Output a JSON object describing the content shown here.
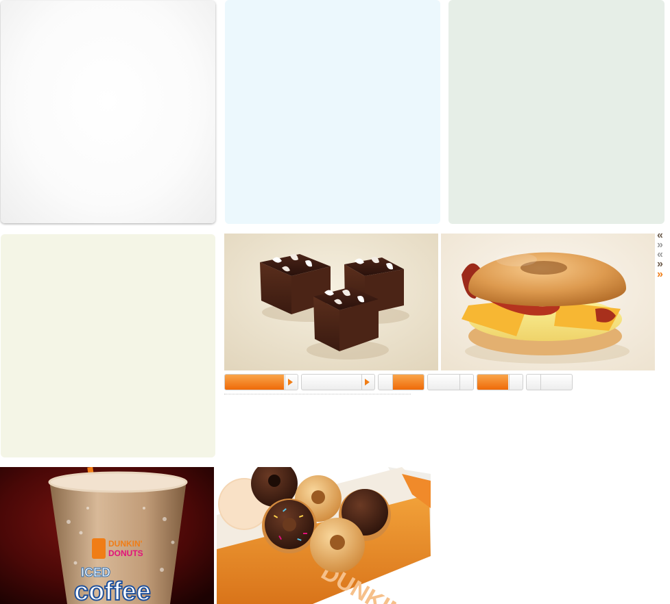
{
  "panels": [
    {
      "name": "white",
      "color": "#ffffff"
    },
    {
      "name": "blue",
      "color": "#ecf8fd"
    },
    {
      "name": "green",
      "color": "#e6eee7"
    },
    {
      "name": "cream",
      "color": "#f4f5e6"
    }
  ],
  "carousel": {
    "arrows": [
      {
        "glyph": "«",
        "icon": "double-chevron-left-icon",
        "color": "#6b5a4a"
      },
      {
        "glyph": "»",
        "icon": "double-chevron-right-icon",
        "color": "#9a9a9a"
      },
      {
        "glyph": "«",
        "icon": "double-chevron-left-icon",
        "color": "#9a9a9a"
      },
      {
        "glyph": "»",
        "icon": "double-chevron-right-icon",
        "color": "#6b5a4a"
      },
      {
        "glyph": "»",
        "icon": "double-chevron-right-icon",
        "color": "#f07d16"
      }
    ],
    "tabs": [
      {
        "state": "active",
        "progress": 0.8
      },
      {
        "state": "inactive",
        "progress": 0
      },
      {
        "state": "partial",
        "progress": 0.6
      },
      {
        "state": "inactive",
        "progress": 0
      },
      {
        "state": "partial",
        "progress": 0.65
      },
      {
        "state": "inactive",
        "progress": 0
      }
    ]
  },
  "coffee_cup": {
    "brand_line1": "DUNKIN'",
    "brand_line2": "DONUTS",
    "product_line1": "ICED",
    "product_line2": "coffee"
  },
  "donut_box": {
    "brand": "DUNKIN"
  },
  "colors": {
    "accent": "#f07d16",
    "brand_pink": "#e2127a",
    "brand_orange": "#f07d16"
  }
}
